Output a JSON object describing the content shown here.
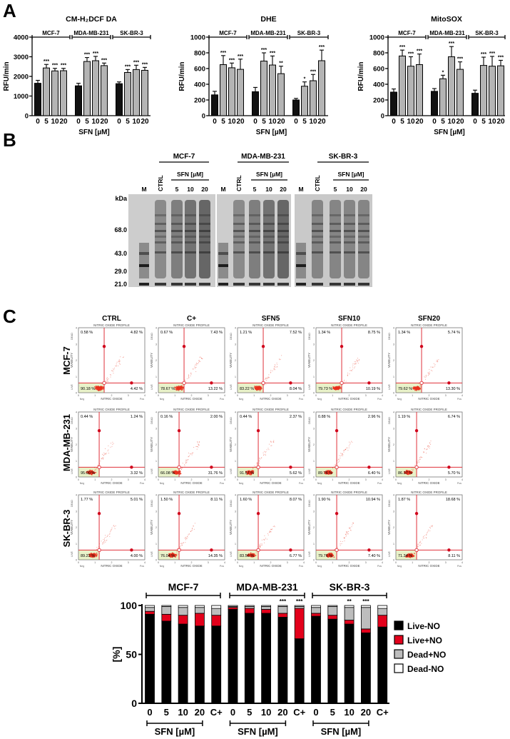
{
  "panel_labels": {
    "a": "A",
    "b": "B",
    "c": "C"
  },
  "colors": {
    "control": "#111111",
    "treated": "#b4b4b4",
    "live_no": "#000000",
    "live_pos_no": "#e3001b",
    "dead_pos_no": "#bdbdbd",
    "dead_no": "#ffffff",
    "gate": "#e0303a",
    "live_gate_fill": "#e9f2c9",
    "events": "#e8321e"
  },
  "chart_data": [
    {
      "type": "bar",
      "title": "CM-H₂DCF DA",
      "ylabel": "RFU/min",
      "xlabel": "SFN [µM]",
      "ylim": [
        0,
        4000
      ],
      "yticks": [
        "0",
        "1000",
        "2000",
        "3000",
        "4000"
      ],
      "groups": [
        {
          "name": "MCF-7",
          "categories": [
            "0",
            "5",
            "10",
            "20"
          ],
          "values": [
            1650,
            2430,
            2280,
            2290
          ],
          "errors": [
            150,
            180,
            130,
            120
          ],
          "significance": [
            "",
            "***",
            "***",
            "***"
          ]
        },
        {
          "name": "MDA-MB-231",
          "categories": [
            "0",
            "5",
            "10",
            "20"
          ],
          "values": [
            1520,
            2760,
            2800,
            2550
          ],
          "errors": [
            130,
            200,
            220,
            130
          ],
          "significance": [
            "",
            "***",
            "***",
            "***"
          ]
        },
        {
          "name": "SK-BR-3",
          "categories": [
            "0",
            "5",
            "10",
            "20"
          ],
          "values": [
            1630,
            2200,
            2350,
            2310
          ],
          "errors": [
            90,
            150,
            220,
            150
          ],
          "significance": [
            "",
            "***",
            "***",
            "***"
          ]
        }
      ]
    },
    {
      "type": "bar",
      "title": "DHE",
      "ylabel": "RFU/min",
      "xlabel": "SFN [µM]",
      "ylim": [
        0,
        1000
      ],
      "yticks": [
        "0",
        "200",
        "400",
        "600",
        "800",
        "1000"
      ],
      "groups": [
        {
          "name": "MCF-7",
          "categories": [
            "0",
            "5",
            "10",
            "20"
          ],
          "values": [
            265,
            650,
            610,
            590
          ],
          "errors": [
            45,
            115,
            60,
            130
          ],
          "significance": [
            "",
            "***",
            "***",
            "***"
          ]
        },
        {
          "name": "MDA-MB-231",
          "categories": [
            "0",
            "5",
            "10",
            "20"
          ],
          "values": [
            305,
            695,
            645,
            535
          ],
          "errors": [
            55,
            105,
            115,
            95
          ],
          "significance": [
            "",
            "***",
            "***",
            "**"
          ]
        },
        {
          "name": "SK-BR-3",
          "categories": [
            "0",
            "5",
            "10",
            "20"
          ],
          "values": [
            200,
            375,
            445,
            700
          ],
          "errors": [
            20,
            55,
            80,
            135
          ],
          "significance": [
            "",
            "*",
            "***",
            "***"
          ]
        }
      ]
    },
    {
      "type": "bar",
      "title": "MitoSOX",
      "ylabel": "RFU/min",
      "xlabel": "SFN [µM]",
      "ylim": [
        0,
        1000
      ],
      "yticks": [
        "0",
        "200",
        "400",
        "600",
        "800",
        "1000"
      ],
      "groups": [
        {
          "name": "MCF-7",
          "categories": [
            "0",
            "5",
            "10",
            "20"
          ],
          "values": [
            300,
            760,
            630,
            650
          ],
          "errors": [
            40,
            75,
            120,
            135
          ],
          "significance": [
            "",
            "***",
            "***",
            "***"
          ]
        },
        {
          "name": "MDA-MB-231",
          "categories": [
            "0",
            "5",
            "10",
            "20"
          ],
          "values": [
            310,
            470,
            750,
            590
          ],
          "errors": [
            35,
            45,
            130,
            95
          ],
          "significance": [
            "",
            "*",
            "***",
            "***"
          ]
        },
        {
          "name": "SK-BR-3",
          "categories": [
            "0",
            "5",
            "10",
            "20"
          ],
          "values": [
            285,
            640,
            630,
            635
          ],
          "errors": [
            40,
            105,
            125,
            70
          ],
          "significance": [
            "",
            "***",
            "***",
            "***"
          ]
        }
      ]
    },
    {
      "type": "bar",
      "stacked": true,
      "ylabel": "[%]",
      "ylim": [
        0,
        100
      ],
      "yticks": [
        "0",
        "50",
        "100"
      ],
      "xlabel": "SFN [µM]",
      "legend_position": "right",
      "series_names": [
        "Live-NO",
        "Live+NO",
        "Dead+NO",
        "Dead-NO"
      ],
      "groups": [
        {
          "name": "MCF-7",
          "categories": [
            "0",
            "5",
            "10",
            "20",
            "C+"
          ],
          "significance": [
            "",
            "",
            "",
            "",
            ""
          ],
          "values": [
            [
              91,
              3,
              4,
              2
            ],
            [
              84,
              7,
              8,
              1
            ],
            [
              81,
              9,
              8,
              2
            ],
            [
              79,
              13,
              6,
              2
            ],
            [
              79,
              11,
              7,
              3
            ]
          ]
        },
        {
          "name": "MDA-MB-231",
          "categories": [
            "0",
            "5",
            "10",
            "20",
            "C+"
          ],
          "significance": [
            "",
            "",
            "",
            "***",
            "***"
          ],
          "values": [
            [
              96,
              2,
              1,
              1
            ],
            [
              92,
              5,
              2,
              1
            ],
            [
              92,
              4,
              3,
              1
            ],
            [
              88,
              4,
              7,
              1
            ],
            [
              66,
              31,
              2,
              1
            ]
          ]
        },
        {
          "name": "SK-BR-3",
          "categories": [
            "0",
            "5",
            "10",
            "20",
            "C+"
          ],
          "significance": [
            "",
            "",
            "**",
            "***",
            ""
          ],
          "values": [
            [
              89,
              3,
              6,
              2
            ],
            [
              86,
              4,
              9,
              1
            ],
            [
              81,
              4,
              13,
              2
            ],
            [
              72,
              4,
              22,
              2
            ],
            [
              78,
              12,
              7,
              3
            ]
          ]
        }
      ]
    }
  ],
  "panel_b": {
    "kda_label": "kDa",
    "markers": [
      "68.0",
      "43.0",
      "29.0",
      "21.0"
    ],
    "blots": [
      {
        "cell_line": "MCF-7",
        "treatment_label": "SFN [µM]",
        "lanes": [
          "M",
          "CTRL",
          "5",
          "10",
          "20"
        ]
      },
      {
        "cell_line": "MDA-MB-231",
        "treatment_label": "SFN [µM]",
        "lanes": [
          "M",
          "CTRL",
          "5",
          "10",
          "20"
        ]
      },
      {
        "cell_line": "SK-BR-3",
        "treatment_label": "SFN [µM]",
        "lanes": [
          "M",
          "CTRL",
          "5",
          "10",
          "20"
        ]
      }
    ]
  },
  "panel_c": {
    "columns": [
      "CTRL",
      "C+",
      "SFN5",
      "SFN10",
      "SFN20"
    ],
    "plot_title": "NITRIC OXIDE PROFILE",
    "x_axis_label": "NITRIC OXIDE",
    "y_axis_label": "VIABILITY",
    "x_neg": "Neg",
    "x_pos": "Pos",
    "y_live": "LIVE",
    "y_dead": "DEAD",
    "axis_ticks": [
      "0",
      "1",
      "2",
      "3",
      "4"
    ],
    "rows": [
      {
        "cell_line": "MCF-7",
        "plots": [
          {
            "ul": "0.58 %",
            "ur": "4.82 %",
            "ll": "90.18 %",
            "lr": "4.42 %"
          },
          {
            "ul": "0.67 %",
            "ur": "7.43 %",
            "ll": "78.67 %",
            "lr": "13.22 %"
          },
          {
            "ul": "1.21 %",
            "ur": "7.52 %",
            "ll": "83.22 %",
            "lr": "8.04 %"
          },
          {
            "ul": "1.34 %",
            "ur": "8.75 %",
            "ll": "79.73 %",
            "lr": "10.19 %"
          },
          {
            "ul": "1.34 %",
            "ur": "5.74 %",
            "ll": "79.62 %",
            "lr": "13.30 %"
          }
        ]
      },
      {
        "cell_line": "MDA-MB-231",
        "plots": [
          {
            "ul": "0.44 %",
            "ur": "1.24 %",
            "ll": "95.00 %",
            "lr": "3.32 %"
          },
          {
            "ul": "0.16 %",
            "ur": "2.00 %",
            "ll": "66.08 %",
            "lr": "31.76 %"
          },
          {
            "ul": "0.44 %",
            "ur": "2.37 %",
            "ll": "91.57 %",
            "lr": "5.62 %"
          },
          {
            "ul": "0.88 %",
            "ur": "2.96 %",
            "ll": "89.76 %",
            "lr": "6.40 %"
          },
          {
            "ul": "1.19 %",
            "ur": "6.74 %",
            "ll": "86.37 %",
            "lr": "5.70 %"
          }
        ]
      },
      {
        "cell_line": "SK-BR-3",
        "plots": [
          {
            "ul": "1.77 %",
            "ur": "5.01 %",
            "ll": "89.22 %",
            "lr": "4.00 %"
          },
          {
            "ul": "1.50 %",
            "ur": "8.11 %",
            "ll": "76.04 %",
            "lr": "14.35 %"
          },
          {
            "ul": "1.60 %",
            "ur": "8.07 %",
            "ll": "83.56 %",
            "lr": "6.77 %"
          },
          {
            "ul": "1.90 %",
            "ur": "10.94 %",
            "ll": "79.76 %",
            "lr": "7.40 %"
          },
          {
            "ul": "1.87 %",
            "ur": "18.68 %",
            "ll": "71.34 %",
            "lr": "8.11 %"
          }
        ]
      }
    ]
  }
}
